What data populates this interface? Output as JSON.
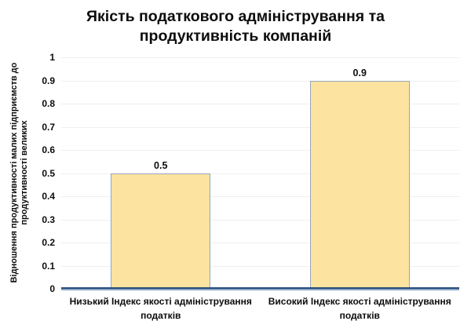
{
  "chart_data": {
    "type": "bar",
    "title": "Якість податкового адміністрування та продуктивність компаній",
    "categories": [
      "Низький Індекс якості адміністрування податків",
      "Високий Індекс якості адміністрування податків"
    ],
    "values": [
      0.5,
      0.9
    ],
    "data_labels": [
      "0.5",
      "0.9"
    ],
    "xlabel": "",
    "ylabel": "Відношення продуктивності малих підприємств до продуктивності великих",
    "ylim": [
      0,
      1
    ],
    "yticks": [
      "0",
      "0.1",
      "0.2",
      "0.3",
      "0.4",
      "0.5",
      "0.6",
      "0.7",
      "0.8",
      "0.9",
      "1"
    ],
    "grid": true,
    "legend": false,
    "colors": {
      "bar_fill": "#fde3a0",
      "bar_border": "#96a5bb",
      "axis_line_dark": "#274b78",
      "axis_line_light": "#8aa5c8",
      "gridline": "#f0f0f0",
      "text": "#0d0d0d"
    }
  }
}
